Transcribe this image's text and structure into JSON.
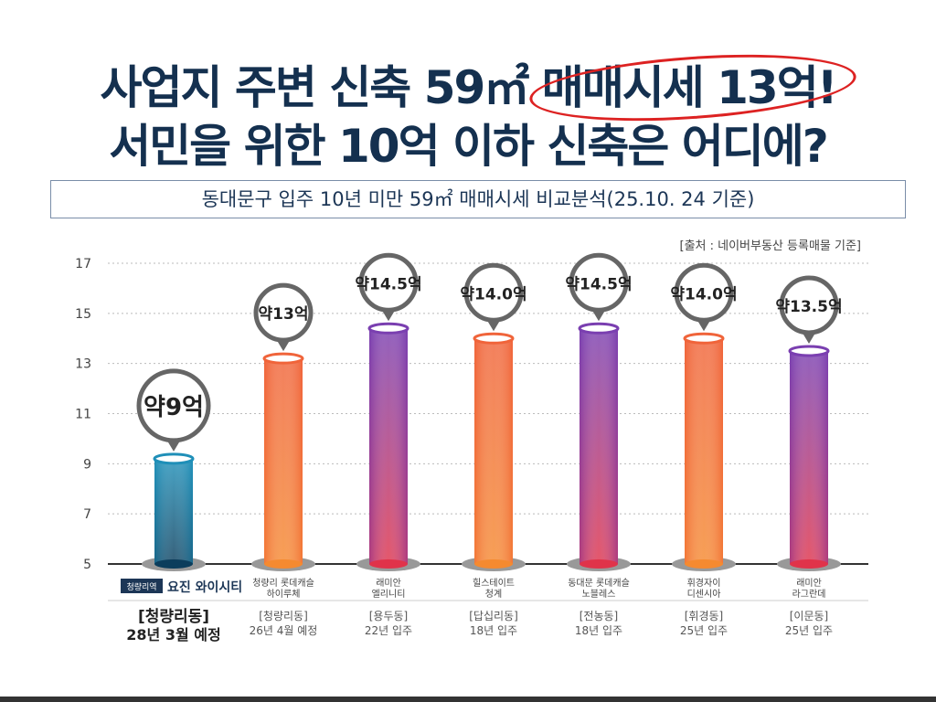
{
  "title_line1_pre": "사업지 주변 신축 59㎡",
  "title_line1_circled": "매매시세 13억!",
  "title_line2": "서민을 위한 10억 이하 신축은 어디에?",
  "subtitle": "동대문구 입주 10년 미만 59㎡ 매매시세 비교분석(25.10. 24 기준)",
  "source": "[출처 : 네이버부동산 등록매물 기준]",
  "highlight_badge": "청량리역",
  "chart_data": {
    "type": "bar",
    "ylim": [
      5,
      17
    ],
    "yticks": [
      5,
      7,
      9,
      11,
      13,
      15,
      17
    ],
    "categories": [
      {
        "name1": "요진 와이시티",
        "name2": "",
        "area": "[청량리동]",
        "date": "28년 3월 예정"
      },
      {
        "name1": "청량리 롯데캐슬",
        "name2": "하이루체",
        "area": "[청량리동]",
        "date": "26년 4월 예정"
      },
      {
        "name1": "래미안",
        "name2": "엘리니티",
        "area": "[용두동]",
        "date": "22년 입주"
      },
      {
        "name1": "힐스테이트",
        "name2": "청계",
        "area": "[답십리동]",
        "date": "18년 입주"
      },
      {
        "name1": "동대문 롯데캐슬",
        "name2": "노블레스",
        "area": "[전농동]",
        "date": "18년 입주"
      },
      {
        "name1": "휘경자이",
        "name2": "디센시아",
        "area": "[휘경동]",
        "date": "25년 입주"
      },
      {
        "name1": "래미안",
        "name2": "라그란데",
        "area": "[이문동]",
        "date": "25년 입주"
      }
    ],
    "values": [
      9.2,
      13.2,
      14.4,
      14.0,
      14.4,
      14.0,
      13.5
    ],
    "labels": [
      "약9억",
      "약13억",
      "약14.5억",
      "약14.0억",
      "약14.5억",
      "약14.0억",
      "약13.5억"
    ],
    "colors": [
      "#1f8fb8",
      "#f0643a",
      "#7a3fb0",
      "#f0643a",
      "#7a3fb0",
      "#f0643a",
      "#7a3fb0"
    ]
  }
}
